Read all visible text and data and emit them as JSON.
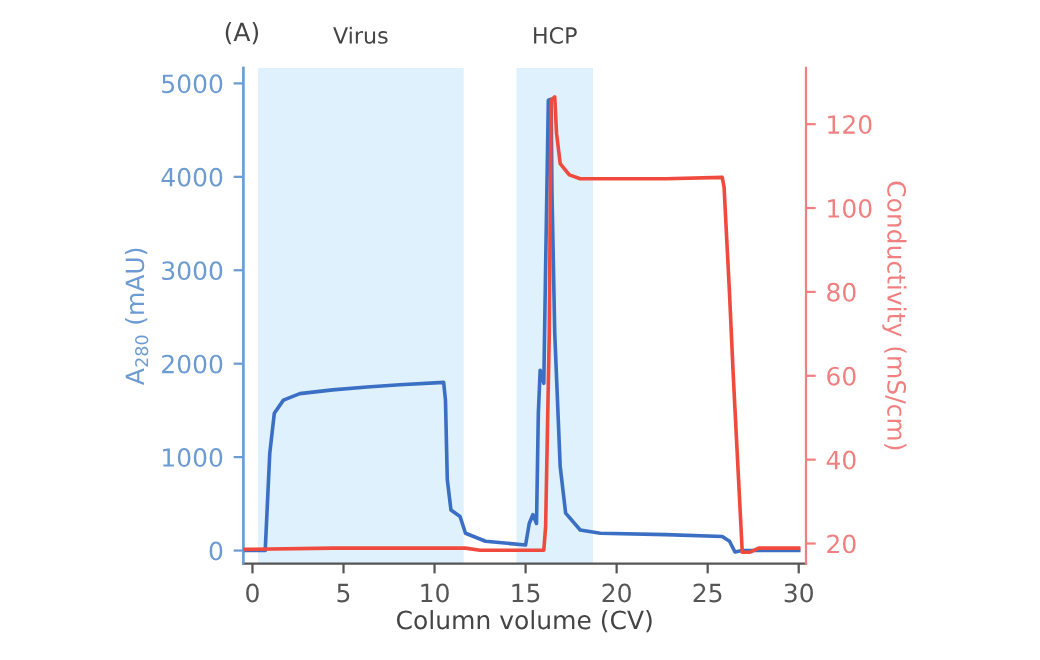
{
  "chart_data": {
    "type": "line",
    "title": "(A)",
    "xlabel": "Column volume (CV)",
    "ylabel": "A$_{280}$ (mAU)",
    "y2label": "Conductivity (mS/cm)",
    "xlim": [
      -0.5,
      30.4
    ],
    "xticks": [
      0,
      5,
      10,
      15,
      20,
      25,
      30
    ],
    "ylim": [
      -140,
      5165
    ],
    "yticks": [
      0,
      1000,
      2000,
      3000,
      4000,
      5000
    ],
    "y2lim": [
      15.2,
      133.4
    ],
    "y2ticks": [
      20,
      40,
      60,
      80,
      100,
      120
    ],
    "grid": false,
    "legend": false,
    "marker": "none",
    "line_style": "solid",
    "bands": [
      {
        "axis": "x",
        "from": 0.3,
        "to": 11.6,
        "label": "Virus",
        "color": "#dff1fc"
      },
      {
        "axis": "x",
        "from": 14.5,
        "to": 18.7,
        "label": "HCP",
        "color": "#dff1fc"
      }
    ],
    "series": [
      {
        "color": "#3a6fc4",
        "x": [
          -0.5,
          0.7,
          0.95,
          1.2,
          1.7,
          2.6,
          4.4,
          6.3,
          8.1,
          10.5,
          10.6,
          10.7,
          10.9,
          11.4,
          11.7,
          12.8,
          15.0,
          15.2,
          15.4,
          15.6,
          15.7,
          15.8,
          16.0,
          16.1,
          16.25,
          16.4,
          16.45,
          16.6,
          16.9,
          17.2,
          18.0,
          19.1,
          22.7,
          25.8,
          26.2,
          26.5,
          26.9,
          30.0
        ],
        "values": [
          0,
          0,
          1040,
          1470,
          1610,
          1680,
          1720,
          1750,
          1775,
          1800,
          1610,
          760,
          435,
          365,
          185,
          100,
          60,
          290,
          385,
          290,
          1470,
          1930,
          1790,
          3040,
          4820,
          4830,
          3820,
          2330,
          900,
          400,
          220,
          185,
          170,
          150,
          100,
          -15,
          0,
          0
        ]
      },
      {
        "color": "#f04a3e",
        "axis": "y2",
        "x": [
          -0.5,
          4.4,
          11.7,
          12.5,
          16.0,
          16.1,
          16.3,
          16.4,
          16.6,
          16.7,
          16.9,
          17.4,
          18.0,
          22.7,
          25.8,
          25.9,
          26.2,
          26.4,
          26.7,
          26.9,
          27.3,
          27.8,
          30.0
        ],
        "values": [
          18.6,
          18.9,
          18.9,
          18.4,
          18.4,
          24,
          70,
          125.7,
          126.5,
          117.8,
          110.6,
          107.9,
          107,
          107,
          107.3,
          105,
          79.6,
          60.5,
          35,
          17.9,
          17.9,
          18.9,
          18.9
        ]
      }
    ]
  }
}
